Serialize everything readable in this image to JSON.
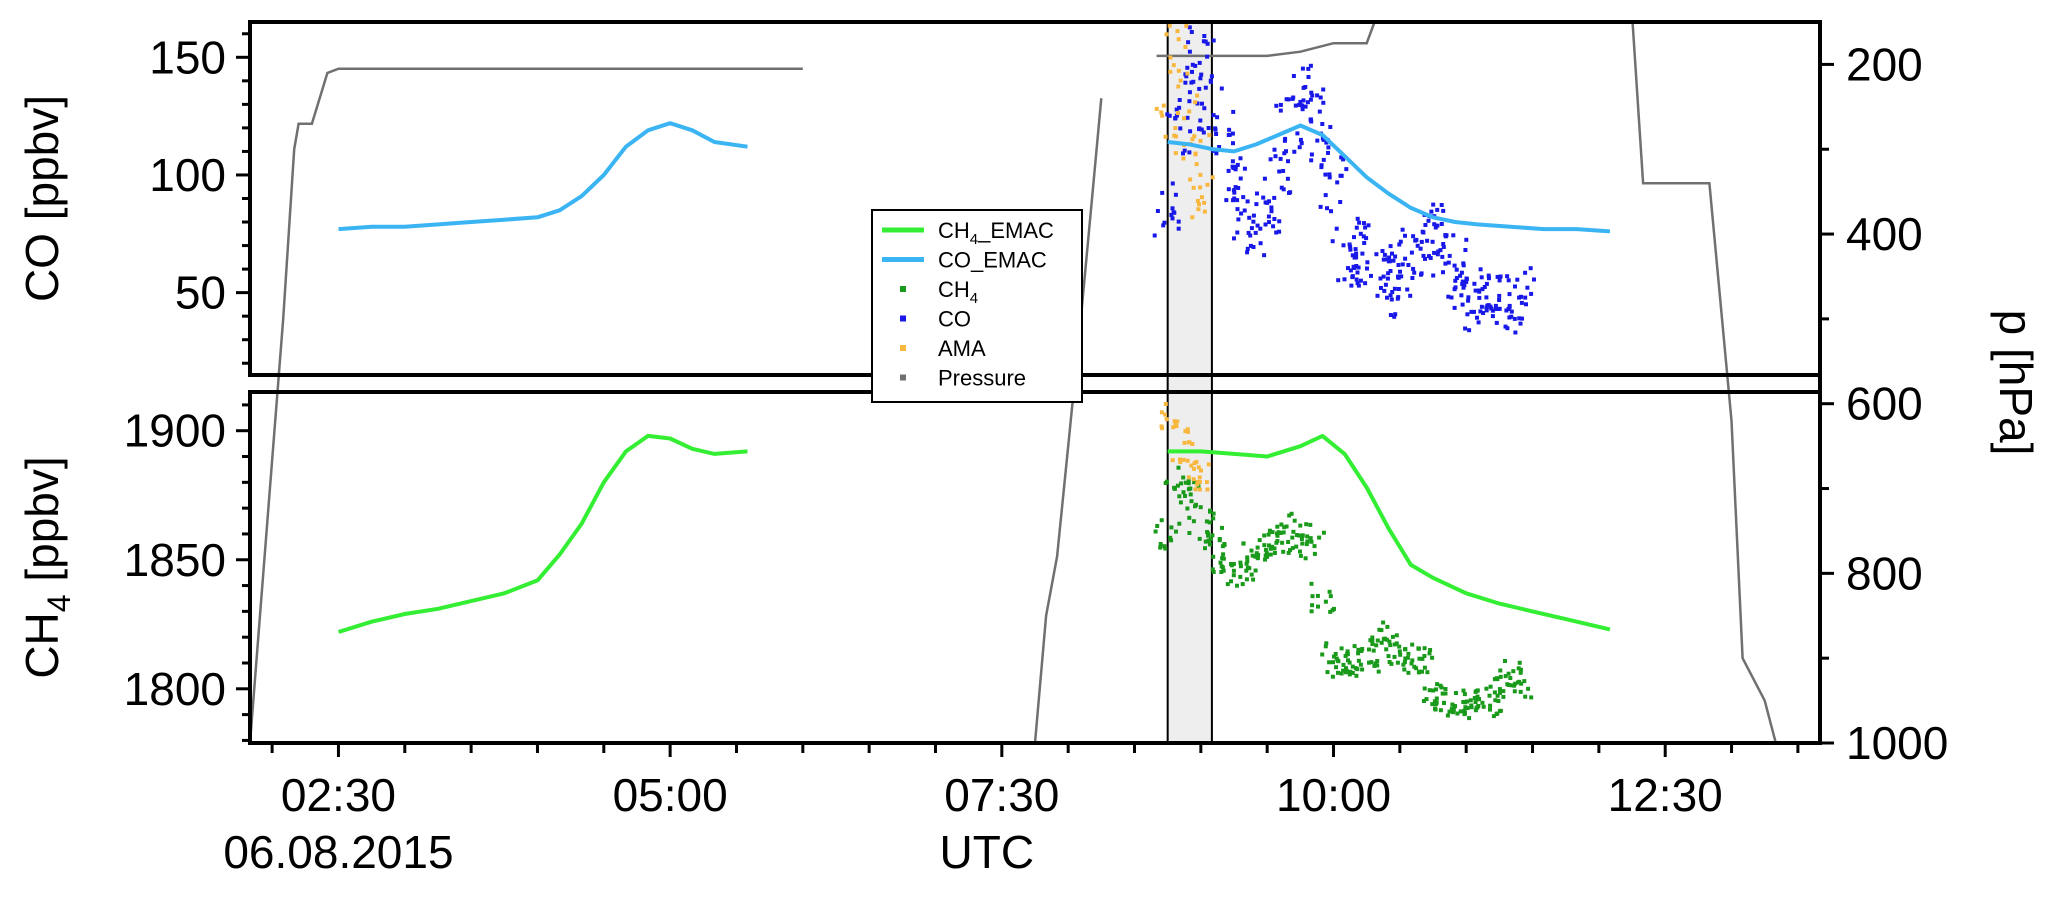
{
  "chart_data": {
    "type": "line",
    "x_axis": {
      "label": "UTC",
      "date_label": "06.08.2015",
      "range": [
        "01:50",
        "13:40"
      ],
      "ticks": [
        "02:30",
        "05:00",
        "07:30",
        "10:00",
        "12:30"
      ]
    },
    "panels": [
      {
        "name": "co-panel",
        "ylabel": "CO [ppbv]",
        "ylim": [
          15,
          165
        ],
        "yticks": [
          50,
          100,
          150
        ],
        "series": [
          {
            "name": "CO_EMAC",
            "type": "line",
            "color": "#3ab4f2",
            "x": [
              "02:30",
              "02:45",
              "03:00",
              "03:15",
              "03:30",
              "03:45",
              "04:00",
              "04:10",
              "04:20",
              "04:30",
              "04:40",
              "04:50",
              "05:00",
              "05:10",
              "05:20",
              "05:35"
            ],
            "y": [
              77,
              78,
              78,
              79,
              80,
              81,
              82,
              85,
              91,
              100,
              112,
              119,
              122,
              119,
              114,
              112
            ],
            "segments": [
              {
                "x": [
                  "08:45",
                  "08:55",
                  "09:05",
                  "09:15",
                  "09:25",
                  "09:35",
                  "09:45",
                  "09:55",
                  "10:05",
                  "10:15",
                  "10:25",
                  "10:35",
                  "10:45",
                  "10:55",
                  "11:05",
                  "11:20",
                  "11:35",
                  "11:50",
                  "12:05"
                ],
                "y": [
                  114,
                  113,
                  111,
                  110,
                  113,
                  117,
                  121,
                  117,
                  108,
                  99,
                  92,
                  86,
                  82,
                  80,
                  79,
                  78,
                  77,
                  77,
                  76
                ]
              }
            ]
          },
          {
            "name": "CO",
            "type": "scatter",
            "color": "#1818e8",
            "x": [
              "08:45",
              "08:50",
              "08:55",
              "09:00",
              "09:05",
              "09:10",
              "09:15",
              "09:20",
              "09:25",
              "09:30",
              "09:35",
              "09:40",
              "09:45",
              "09:50",
              "09:55",
              "10:00",
              "10:05",
              "10:10",
              "10:15",
              "10:20",
              "10:25",
              "10:30",
              "10:35",
              "10:40",
              "10:45",
              "10:50",
              "10:55",
              "11:00",
              "11:05",
              "11:10",
              "11:15",
              "11:20",
              "11:25"
            ],
            "y": [
              85,
              120,
              140,
              150,
              130,
              115,
              95,
              80,
              78,
              88,
              100,
              120,
              135,
              125,
              112,
              95,
              65,
              62,
              70,
              58,
              52,
              60,
              65,
              70,
              75,
              72,
              60,
              50,
              46,
              48,
              44,
              45,
              48
            ]
          }
        ]
      },
      {
        "name": "ch4-panel",
        "ylabel": "CH",
        "ylabel_sub": "4",
        "ylabel_rest": " [ppbv]",
        "ylim": [
          1779,
          1915
        ],
        "yticks": [
          1800,
          1850,
          1900
        ],
        "series": [
          {
            "name": "CH4_EMAC",
            "type": "line",
            "color": "#33ee33",
            "x": [
              "02:30",
              "02:45",
              "03:00",
              "03:15",
              "03:30",
              "03:45",
              "04:00",
              "04:10",
              "04:20",
              "04:30",
              "04:40",
              "04:50",
              "05:00",
              "05:10",
              "05:20",
              "05:35"
            ],
            "y": [
              1822,
              1826,
              1829,
              1831,
              1834,
              1837,
              1842,
              1852,
              1864,
              1880,
              1892,
              1898,
              1897,
              1893,
              1891,
              1892
            ],
            "segments": [
              {
                "x": [
                  "08:45",
                  "09:00",
                  "09:15",
                  "09:30",
                  "09:45",
                  "09:55",
                  "10:05",
                  "10:15",
                  "10:25",
                  "10:35",
                  "10:45",
                  "11:00",
                  "11:15",
                  "11:30",
                  "11:45",
                  "12:05"
                ],
                "y": [
                  1892,
                  1892,
                  1891,
                  1890,
                  1894,
                  1898,
                  1891,
                  1878,
                  1862,
                  1848,
                  1843,
                  1837,
                  1833,
                  1830,
                  1827,
                  1823
                ]
              }
            ]
          },
          {
            "name": "CH4",
            "type": "scatter",
            "color": "#1a9a1a",
            "x": [
              "08:45",
              "08:50",
              "08:55",
              "09:00",
              "09:05",
              "09:10",
              "09:15",
              "09:20",
              "09:25",
              "09:30",
              "09:35",
              "09:40",
              "09:45",
              "09:50",
              "09:55",
              "10:00",
              "10:05",
              "10:10",
              "10:15",
              "10:20",
              "10:25",
              "10:30",
              "10:35",
              "10:40",
              "10:45",
              "10:50",
              "10:55",
              "11:00",
              "11:05",
              "11:10",
              "11:15",
              "11:20",
              "11:25"
            ],
            "y": [
              1860,
              1880,
              1875,
              1865,
              1858,
              1850,
              1845,
              1848,
              1852,
              1856,
              1858,
              1862,
              1858,
              1856,
              1835,
              1812,
              1808,
              1810,
              1812,
              1815,
              1820,
              1815,
              1810,
              1812,
              1798,
              1796,
              1795,
              1793,
              1796,
              1795,
              1800,
              1805,
              1802
            ]
          }
        ]
      }
    ],
    "ama_scatter": {
      "name": "AMA",
      "color": "#f8b840",
      "x": [
        "08:45",
        "08:49",
        "08:53",
        "08:57",
        "09:01"
      ],
      "co_y": [
        130,
        150,
        120,
        95,
        105
      ],
      "ch4_y": [
        1905,
        1900,
        1890,
        1885,
        1882
      ]
    },
    "pressure": {
      "name": "Pressure",
      "color": "#707070",
      "ylabel": "p [hPa]",
      "ylim": [
        1000,
        150
      ],
      "yticks": [
        200,
        400,
        600,
        800,
        1000
      ],
      "segments": [
        {
          "x": [
            "01:50",
            "02:05",
            "02:10",
            "02:12",
            "02:18",
            "02:25",
            "02:30",
            "03:00",
            "04:00",
            "05:00",
            "06:00"
          ],
          "y": [
            1000,
            500,
            300,
            270,
            270,
            210,
            205,
            205,
            205,
            205,
            205
          ]
        },
        {
          "x": [
            "07:45",
            "07:50",
            "07:55",
            "08:00",
            "08:05",
            "08:10",
            "08:15"
          ],
          "y": [
            1000,
            850,
            780,
            650,
            520,
            380,
            240
          ]
        },
        {
          "x": [
            "08:40",
            "09:00",
            "09:30",
            "09:45",
            "10:00",
            "10:15",
            "10:20",
            "10:40",
            "11:00",
            "11:30",
            "12:00",
            "12:15",
            "12:20",
            "12:50",
            "13:00",
            "13:05",
            "13:15",
            "13:20"
          ],
          "y": [
            190,
            190,
            190,
            185,
            175,
            175,
            140,
            140,
            140,
            140,
            140,
            140,
            340,
            340,
            620,
            900,
            950,
            1000
          ]
        }
      ]
    },
    "highlight": {
      "x": [
        "08:45",
        "09:05"
      ],
      "color": "#eeeeee"
    },
    "legend": {
      "position": "center",
      "entries": [
        {
          "label": "CH",
          "sub": "4",
          "rest": "_EMAC",
          "color": "#33ee33",
          "marker": "line"
        },
        {
          "label": "CO_EMAC",
          "sub": "",
          "rest": "",
          "color": "#3ab4f2",
          "marker": "line"
        },
        {
          "label": "CH",
          "sub": "4",
          "rest": "",
          "color": "#1a9a1a",
          "marker": "square"
        },
        {
          "label": "CO",
          "sub": "",
          "rest": "",
          "color": "#1818e8",
          "marker": "square"
        },
        {
          "label": "AMA",
          "sub": "",
          "rest": "",
          "color": "#f8b840",
          "marker": "square"
        },
        {
          "label": "Pressure",
          "sub": "",
          "rest": "",
          "color": "#707070",
          "marker": "square"
        }
      ]
    }
  }
}
